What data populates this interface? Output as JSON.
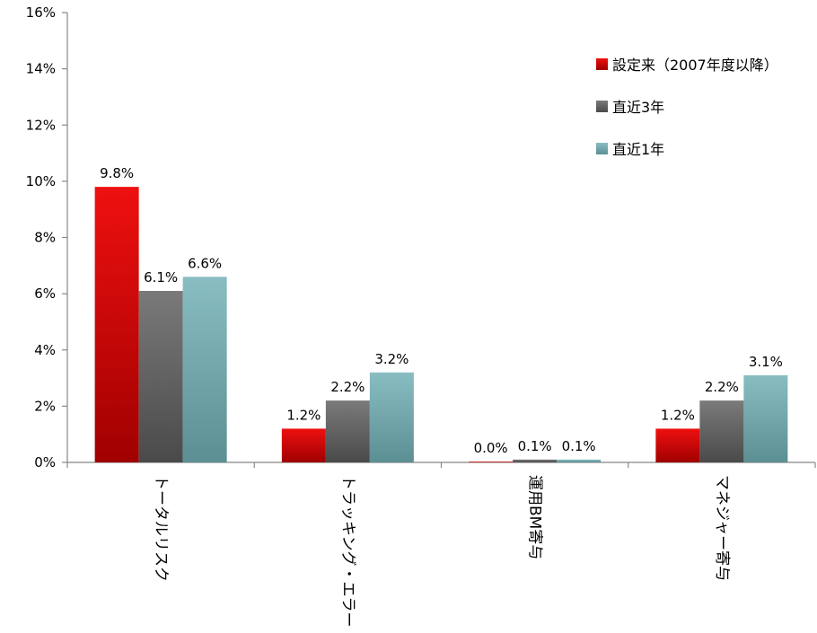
{
  "chart_data": {
    "type": "bar",
    "categories": [
      "トータルリスク",
      "トラッキング・エラー",
      "運用BM寄与",
      "マネジャー寄与"
    ],
    "series": [
      {
        "name": "設定来（2007年度以降）",
        "values": [
          9.8,
          1.2,
          0.0,
          1.2
        ],
        "labels": [
          "9.8%",
          "1.2%",
          "0.0%",
          "1.2%"
        ]
      },
      {
        "name": "直近3年",
        "values": [
          6.1,
          2.2,
          0.1,
          2.2
        ],
        "labels": [
          "6.1%",
          "2.2%",
          "0.1%",
          "2.2%"
        ]
      },
      {
        "name": "直近1年",
        "values": [
          6.6,
          3.2,
          0.1,
          3.1
        ],
        "labels": [
          "6.6%",
          "3.2%",
          "0.1%",
          "3.1%"
        ]
      }
    ],
    "ylim": [
      0,
      16
    ],
    "yticks": [
      0,
      2,
      4,
      6,
      8,
      10,
      12,
      14,
      16
    ],
    "ytick_labels": [
      "0%",
      "2%",
      "4%",
      "6%",
      "8%",
      "10%",
      "12%",
      "14%",
      "16%"
    ],
    "grid": false,
    "legend_position": "top-right",
    "colors": {
      "series_0": {
        "top": "#ee1010",
        "bottom": "#a00000"
      },
      "series_1": {
        "top": "#7a7a7a",
        "bottom": "#4a4a4a"
      },
      "series_2": {
        "top": "#88bdc2",
        "bottom": "#5c8f94"
      }
    }
  }
}
